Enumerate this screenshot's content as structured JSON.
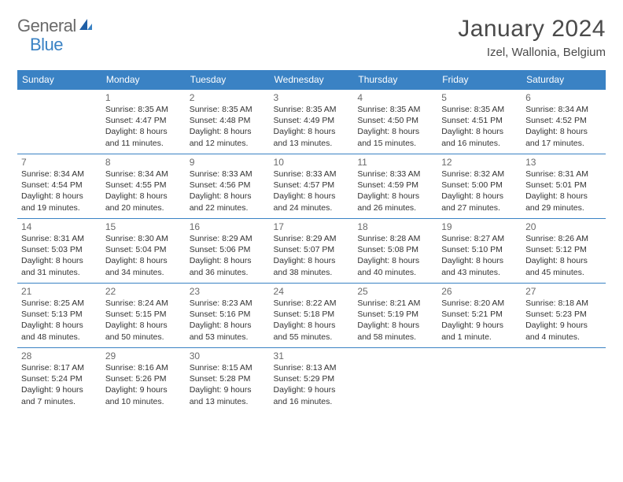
{
  "logo": {
    "part1": "General",
    "part2": "Blue"
  },
  "title": "January 2024",
  "location": "Izel, Wallonia, Belgium",
  "colors": {
    "header_bg": "#3a82c4",
    "header_text": "#ffffff",
    "rule": "#3a82c4",
    "text": "#333333",
    "daynum": "#6a6a6a",
    "logo_gray": "#6a6a6a",
    "logo_blue": "#3a82c4"
  },
  "fonts": {
    "title_size_pt": 22,
    "location_size_pt": 11,
    "dow_size_pt": 9,
    "body_size_pt": 8
  },
  "days_of_week": [
    "Sunday",
    "Monday",
    "Tuesday",
    "Wednesday",
    "Thursday",
    "Friday",
    "Saturday"
  ],
  "weeks": [
    [
      null,
      {
        "n": "1",
        "sunrise": "Sunrise: 8:35 AM",
        "sunset": "Sunset: 4:47 PM",
        "d1": "Daylight: 8 hours",
        "d2": "and 11 minutes."
      },
      {
        "n": "2",
        "sunrise": "Sunrise: 8:35 AM",
        "sunset": "Sunset: 4:48 PM",
        "d1": "Daylight: 8 hours",
        "d2": "and 12 minutes."
      },
      {
        "n": "3",
        "sunrise": "Sunrise: 8:35 AM",
        "sunset": "Sunset: 4:49 PM",
        "d1": "Daylight: 8 hours",
        "d2": "and 13 minutes."
      },
      {
        "n": "4",
        "sunrise": "Sunrise: 8:35 AM",
        "sunset": "Sunset: 4:50 PM",
        "d1": "Daylight: 8 hours",
        "d2": "and 15 minutes."
      },
      {
        "n": "5",
        "sunrise": "Sunrise: 8:35 AM",
        "sunset": "Sunset: 4:51 PM",
        "d1": "Daylight: 8 hours",
        "d2": "and 16 minutes."
      },
      {
        "n": "6",
        "sunrise": "Sunrise: 8:34 AM",
        "sunset": "Sunset: 4:52 PM",
        "d1": "Daylight: 8 hours",
        "d2": "and 17 minutes."
      }
    ],
    [
      {
        "n": "7",
        "sunrise": "Sunrise: 8:34 AM",
        "sunset": "Sunset: 4:54 PM",
        "d1": "Daylight: 8 hours",
        "d2": "and 19 minutes."
      },
      {
        "n": "8",
        "sunrise": "Sunrise: 8:34 AM",
        "sunset": "Sunset: 4:55 PM",
        "d1": "Daylight: 8 hours",
        "d2": "and 20 minutes."
      },
      {
        "n": "9",
        "sunrise": "Sunrise: 8:33 AM",
        "sunset": "Sunset: 4:56 PM",
        "d1": "Daylight: 8 hours",
        "d2": "and 22 minutes."
      },
      {
        "n": "10",
        "sunrise": "Sunrise: 8:33 AM",
        "sunset": "Sunset: 4:57 PM",
        "d1": "Daylight: 8 hours",
        "d2": "and 24 minutes."
      },
      {
        "n": "11",
        "sunrise": "Sunrise: 8:33 AM",
        "sunset": "Sunset: 4:59 PM",
        "d1": "Daylight: 8 hours",
        "d2": "and 26 minutes."
      },
      {
        "n": "12",
        "sunrise": "Sunrise: 8:32 AM",
        "sunset": "Sunset: 5:00 PM",
        "d1": "Daylight: 8 hours",
        "d2": "and 27 minutes."
      },
      {
        "n": "13",
        "sunrise": "Sunrise: 8:31 AM",
        "sunset": "Sunset: 5:01 PM",
        "d1": "Daylight: 8 hours",
        "d2": "and 29 minutes."
      }
    ],
    [
      {
        "n": "14",
        "sunrise": "Sunrise: 8:31 AM",
        "sunset": "Sunset: 5:03 PM",
        "d1": "Daylight: 8 hours",
        "d2": "and 31 minutes."
      },
      {
        "n": "15",
        "sunrise": "Sunrise: 8:30 AM",
        "sunset": "Sunset: 5:04 PM",
        "d1": "Daylight: 8 hours",
        "d2": "and 34 minutes."
      },
      {
        "n": "16",
        "sunrise": "Sunrise: 8:29 AM",
        "sunset": "Sunset: 5:06 PM",
        "d1": "Daylight: 8 hours",
        "d2": "and 36 minutes."
      },
      {
        "n": "17",
        "sunrise": "Sunrise: 8:29 AM",
        "sunset": "Sunset: 5:07 PM",
        "d1": "Daylight: 8 hours",
        "d2": "and 38 minutes."
      },
      {
        "n": "18",
        "sunrise": "Sunrise: 8:28 AM",
        "sunset": "Sunset: 5:08 PM",
        "d1": "Daylight: 8 hours",
        "d2": "and 40 minutes."
      },
      {
        "n": "19",
        "sunrise": "Sunrise: 8:27 AM",
        "sunset": "Sunset: 5:10 PM",
        "d1": "Daylight: 8 hours",
        "d2": "and 43 minutes."
      },
      {
        "n": "20",
        "sunrise": "Sunrise: 8:26 AM",
        "sunset": "Sunset: 5:12 PM",
        "d1": "Daylight: 8 hours",
        "d2": "and 45 minutes."
      }
    ],
    [
      {
        "n": "21",
        "sunrise": "Sunrise: 8:25 AM",
        "sunset": "Sunset: 5:13 PM",
        "d1": "Daylight: 8 hours",
        "d2": "and 48 minutes."
      },
      {
        "n": "22",
        "sunrise": "Sunrise: 8:24 AM",
        "sunset": "Sunset: 5:15 PM",
        "d1": "Daylight: 8 hours",
        "d2": "and 50 minutes."
      },
      {
        "n": "23",
        "sunrise": "Sunrise: 8:23 AM",
        "sunset": "Sunset: 5:16 PM",
        "d1": "Daylight: 8 hours",
        "d2": "and 53 minutes."
      },
      {
        "n": "24",
        "sunrise": "Sunrise: 8:22 AM",
        "sunset": "Sunset: 5:18 PM",
        "d1": "Daylight: 8 hours",
        "d2": "and 55 minutes."
      },
      {
        "n": "25",
        "sunrise": "Sunrise: 8:21 AM",
        "sunset": "Sunset: 5:19 PM",
        "d1": "Daylight: 8 hours",
        "d2": "and 58 minutes."
      },
      {
        "n": "26",
        "sunrise": "Sunrise: 8:20 AM",
        "sunset": "Sunset: 5:21 PM",
        "d1": "Daylight: 9 hours",
        "d2": "and 1 minute."
      },
      {
        "n": "27",
        "sunrise": "Sunrise: 8:18 AM",
        "sunset": "Sunset: 5:23 PM",
        "d1": "Daylight: 9 hours",
        "d2": "and 4 minutes."
      }
    ],
    [
      {
        "n": "28",
        "sunrise": "Sunrise: 8:17 AM",
        "sunset": "Sunset: 5:24 PM",
        "d1": "Daylight: 9 hours",
        "d2": "and 7 minutes."
      },
      {
        "n": "29",
        "sunrise": "Sunrise: 8:16 AM",
        "sunset": "Sunset: 5:26 PM",
        "d1": "Daylight: 9 hours",
        "d2": "and 10 minutes."
      },
      {
        "n": "30",
        "sunrise": "Sunrise: 8:15 AM",
        "sunset": "Sunset: 5:28 PM",
        "d1": "Daylight: 9 hours",
        "d2": "and 13 minutes."
      },
      {
        "n": "31",
        "sunrise": "Sunrise: 8:13 AM",
        "sunset": "Sunset: 5:29 PM",
        "d1": "Daylight: 9 hours",
        "d2": "and 16 minutes."
      },
      null,
      null,
      null
    ]
  ]
}
